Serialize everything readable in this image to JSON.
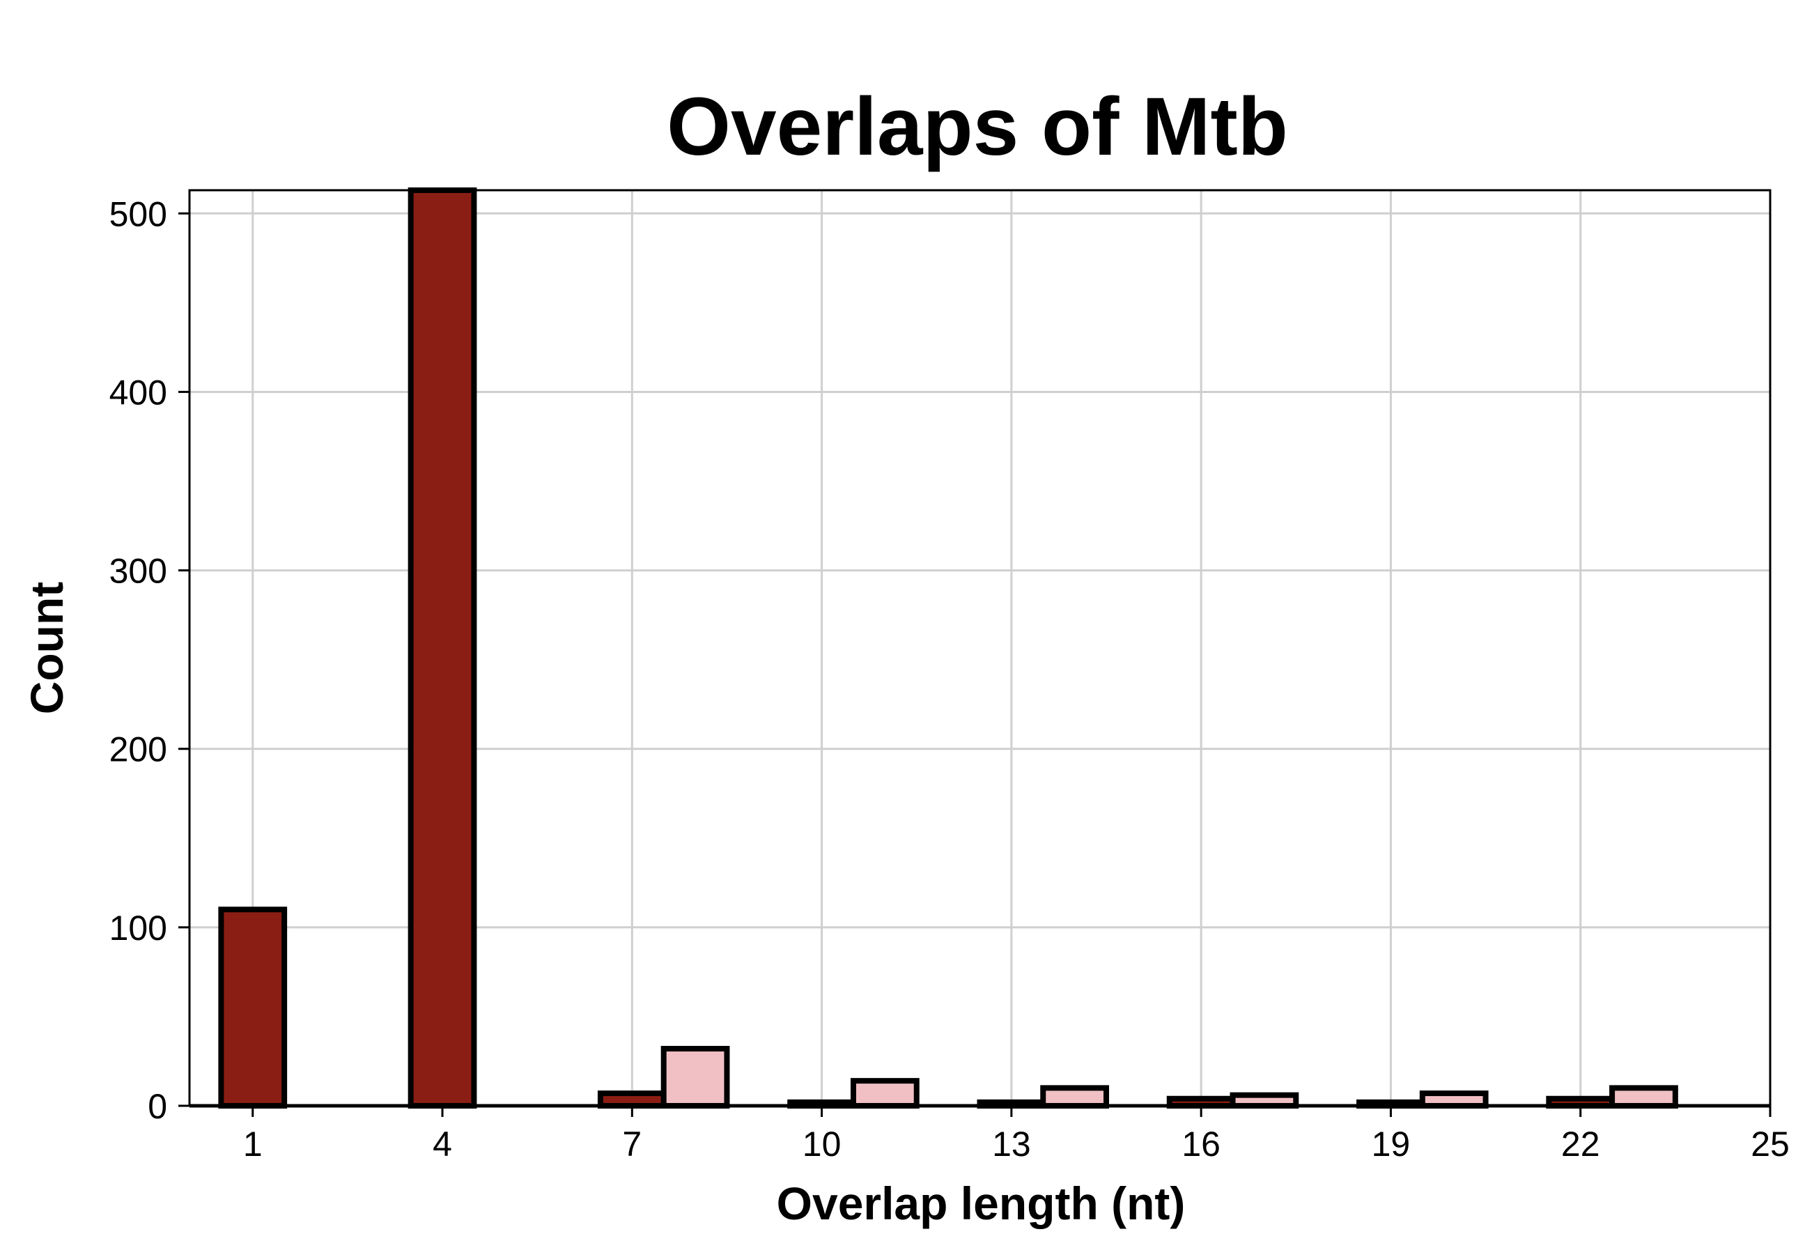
{
  "chart_data": {
    "type": "bar",
    "title": "Overlaps of Mtb",
    "xlabel": "Overlap length (nt)",
    "ylabel": "Count",
    "xlim": [
      0,
      25
    ],
    "ylim": [
      0,
      513
    ],
    "x_ticks": [
      1,
      4,
      7,
      10,
      13,
      16,
      19,
      22,
      25
    ],
    "y_ticks": [
      0,
      100,
      200,
      300,
      400,
      500
    ],
    "grid": true,
    "legend": "none",
    "bar_width": 1,
    "series": [
      {
        "color": "#8b1e14",
        "bars": [
          {
            "x": 1,
            "value": 110
          },
          {
            "x": 4,
            "value": 513
          },
          {
            "x": 7,
            "value": 7
          },
          {
            "x": 10,
            "value": 2
          },
          {
            "x": 13,
            "value": 2
          },
          {
            "x": 16,
            "value": 4
          },
          {
            "x": 19,
            "value": 2
          },
          {
            "x": 22,
            "value": 4
          }
        ]
      },
      {
        "color": "#f0c0c4",
        "bars": [
          {
            "x": 8,
            "value": 32
          },
          {
            "x": 11,
            "value": 14
          },
          {
            "x": 14,
            "value": 10
          },
          {
            "x": 17,
            "value": 6
          },
          {
            "x": 20,
            "value": 7
          },
          {
            "x": 23,
            "value": 10
          }
        ]
      }
    ]
  }
}
